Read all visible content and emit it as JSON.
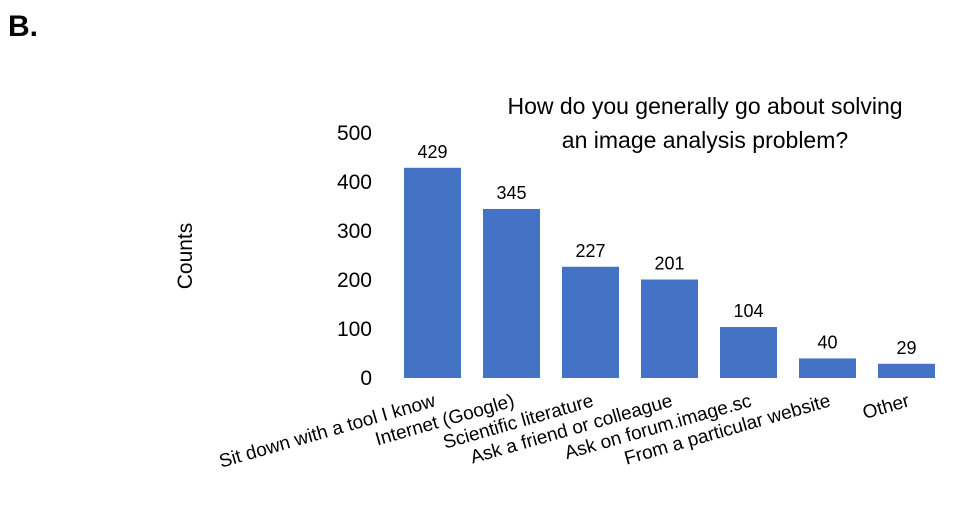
{
  "panel_label": "B.",
  "chart_data": {
    "type": "bar",
    "title_lines": [
      "How do you generally go about solving",
      "an image analysis problem?"
    ],
    "xlabel": "",
    "ylabel": "Counts",
    "categories": [
      "Sit down with a tool I know",
      "Internet (Google)",
      "Scientific literature",
      "Ask a friend or colleague",
      "Ask on forum.image.sc",
      "From a particular website",
      "Other"
    ],
    "values": [
      429,
      345,
      227,
      201,
      104,
      40,
      29
    ],
    "data_labels": [
      "429",
      "345",
      "227",
      "201",
      "104",
      "40",
      "29"
    ],
    "ylim": [
      0,
      500
    ],
    "yticks": [
      0,
      100,
      200,
      300,
      400,
      500
    ],
    "grid": false,
    "legend": "none",
    "bar_color": "#4472C4"
  }
}
